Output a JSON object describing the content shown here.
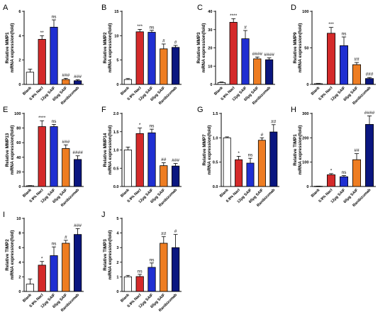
{
  "colors": {
    "Blank": "#ffffff",
    "0.9% Nacl": "#d42a2a",
    "12μg SAIF": "#1f2fd2",
    "60μg SAIF": "#ee7d22",
    "Ranibizumab": "#0a1680"
  },
  "chart_data": [
    {
      "type": "bar",
      "panel": "A",
      "ylabel_lines": [
        "Relative MMP1",
        "mRNA expression(fold)"
      ],
      "categories": [
        "Blank",
        "0.9% Nacl",
        "12μg SAIF",
        "60μg SAIF",
        "Ranibizumab"
      ],
      "values": [
        1.0,
        3.7,
        4.7,
        0.4,
        0.3
      ],
      "errors": [
        0.25,
        0.3,
        0.6,
        0.1,
        0.08
      ],
      "significance": [
        "",
        "**",
        "ns",
        "###",
        "###"
      ],
      "ylim": [
        0,
        6
      ],
      "yticks": [
        "0",
        "2",
        "4",
        "6"
      ],
      "yticks_values": [
        0,
        2,
        4,
        6
      ]
    },
    {
      "type": "bar",
      "panel": "B",
      "ylabel_lines": [
        "Relative MMP2",
        "mRNA expression(fold)"
      ],
      "categories": [
        "Blank",
        "0.9% Nacl",
        "12μg SAIF",
        "60μg SAIF",
        "Ranibizumab"
      ],
      "values": [
        1.0,
        10.8,
        10.7,
        7.3,
        7.6
      ],
      "errors": [
        0.2,
        0.5,
        0.4,
        1.0,
        0.4
      ],
      "significance": [
        "",
        "***",
        "ns",
        "#",
        "#"
      ],
      "ylim": [
        0,
        15
      ],
      "yticks": [
        "0",
        "5",
        "10",
        "15"
      ],
      "yticks_values": [
        0,
        5,
        10,
        15
      ]
    },
    {
      "type": "bar",
      "panel": "C",
      "ylabel_lines": [
        "Relative MMP3",
        "mRNA expression(fold)"
      ],
      "categories": [
        "Blank",
        "0.9% Nacl",
        "12μg SAIF",
        "60μg SAIF",
        "Ranibizumab"
      ],
      "values": [
        1.0,
        34.0,
        25.0,
        14.0,
        13.5
      ],
      "errors": [
        0.3,
        2.0,
        4.5,
        1.0,
        1.0
      ],
      "significance": [
        "",
        "****",
        "#",
        "####",
        "####"
      ],
      "ylim": [
        0,
        40
      ],
      "yticks": [
        "0",
        "10",
        "20",
        "30",
        "40"
      ],
      "yticks_values": [
        0,
        10,
        20,
        30,
        40
      ]
    },
    {
      "type": "bar",
      "panel": "D",
      "ylabel_lines": [
        "Relative MMP9",
        "mRNA expression(fold)"
      ],
      "categories": [
        "Blank",
        "0.9% Nacl",
        "12μg SAIF",
        "60μg SAIF",
        "Ranibizumab"
      ],
      "values": [
        1.0,
        70.0,
        53.0,
        27.0,
        8.0
      ],
      "errors": [
        0.4,
        8.0,
        12.0,
        3.0,
        1.5
      ],
      "significance": [
        "",
        "***",
        "ns",
        "##",
        "###"
      ],
      "ylim": [
        0,
        100
      ],
      "yticks": [
        "0",
        "50",
        "100"
      ],
      "yticks_values": [
        0,
        50,
        100
      ]
    },
    {
      "type": "bar",
      "panel": "E",
      "ylabel_lines": [
        "Relative MMP13",
        "mRNA expression(fold)"
      ],
      "categories": [
        "Blank",
        "0.9% Nacl",
        "12μg SAIF",
        "60μg SAIF",
        "Ranibizumab"
      ],
      "values": [
        1.0,
        82.0,
        82.0,
        52.0,
        37.0
      ],
      "errors": [
        0.3,
        8.0,
        3.0,
        5.0,
        5.0
      ],
      "significance": [
        "",
        "****",
        "ns",
        "###",
        "####"
      ],
      "ylim": [
        0,
        100
      ],
      "yticks": [
        "0",
        "20",
        "40",
        "60",
        "80",
        "100"
      ],
      "yticks_values": [
        0,
        20,
        40,
        60,
        80,
        100
      ]
    },
    {
      "type": "bar",
      "panel": "F",
      "ylabel_lines": [
        "Relative MMP14",
        "mRNA expression(fold)"
      ],
      "categories": [
        "Blank",
        "0.9% Nacl",
        "12μg SAIF",
        "60μg SAIF",
        "Ranibizumab"
      ],
      "values": [
        1.0,
        1.45,
        1.47,
        0.57,
        0.56
      ],
      "errors": [
        0.08,
        0.15,
        0.1,
        0.08,
        0.07
      ],
      "significance": [
        "",
        "*",
        "ns",
        "##",
        "###"
      ],
      "ylim": [
        0,
        2
      ],
      "yticks": [
        "0.0",
        "0.5",
        "1.0",
        "1.5",
        "2.0"
      ],
      "yticks_values": [
        0,
        0.5,
        1.0,
        1.5,
        2.0
      ]
    },
    {
      "type": "bar",
      "panel": "G",
      "ylabel_lines": [
        "Relative MMP7",
        "mRNA expression(fold)"
      ],
      "categories": [
        "Blank",
        "0.9% Nacl",
        "12μg SAIF",
        "60μg SAIF",
        "Ranibizumab"
      ],
      "values": [
        1.0,
        0.55,
        0.48,
        0.95,
        1.12
      ],
      "errors": [
        0.02,
        0.07,
        0.1,
        0.05,
        0.15
      ],
      "significance": [
        "",
        "*",
        "ns",
        "#",
        "##"
      ],
      "ylim": [
        0,
        1.5
      ],
      "yticks": [
        "0.0",
        "0.5",
        "1.0",
        "1.5"
      ],
      "yticks_values": [
        0,
        0.5,
        1.0,
        1.5
      ]
    },
    {
      "type": "bar",
      "panel": "H",
      "ylabel_lines": [
        "Relative TIMP1",
        "mRNA expression(fold)"
      ],
      "categories": [
        "Blank",
        "0.9% Nacl",
        "12μg SAIF",
        "60μg SAIF",
        "Ranibizumab"
      ],
      "values": [
        1.0,
        48.0,
        40.0,
        110.0,
        255.0
      ],
      "errors": [
        0.5,
        5.0,
        5.0,
        25.0,
        35.0
      ],
      "significance": [
        "",
        "*",
        "ns",
        "##",
        "####"
      ],
      "ylim": [
        0,
        300
      ],
      "yticks": [
        "0",
        "100",
        "200",
        "300"
      ],
      "yticks_values": [
        0,
        100,
        200,
        300
      ]
    },
    {
      "type": "bar",
      "panel": "I",
      "ylabel_lines": [
        "Relative TIMP2",
        "mRNA expression(fold)"
      ],
      "categories": [
        "Blank",
        "0.9% Nacl",
        "12μg SAIF",
        "60μg SAIF",
        "Ranibizumab"
      ],
      "values": [
        1.0,
        3.6,
        4.9,
        6.6,
        7.8
      ],
      "errors": [
        0.7,
        0.5,
        1.2,
        0.4,
        0.8
      ],
      "significance": [
        "",
        "*",
        "ns",
        "#",
        "###"
      ],
      "ylim": [
        0,
        10
      ],
      "yticks": [
        "0",
        "2",
        "4",
        "6",
        "8",
        "10"
      ],
      "yticks_values": [
        0,
        2,
        4,
        6,
        8,
        10
      ]
    },
    {
      "type": "bar",
      "panel": "J",
      "ylabel_lines": [
        "Relative TIMP3",
        "mRNA expression(fold)"
      ],
      "categories": [
        "Blank",
        "0.9% Nacl",
        "12μg SAIF",
        "60μg SAIF",
        "Ranibizumab"
      ],
      "values": [
        1.0,
        1.02,
        1.65,
        3.3,
        3.0
      ],
      "errors": [
        0.1,
        0.15,
        0.3,
        0.45,
        0.9
      ],
      "significance": [
        "",
        "ns",
        "ns",
        "##",
        "#"
      ],
      "ylim": [
        0,
        5
      ],
      "yticks": [
        "0",
        "1",
        "2",
        "3",
        "4",
        "5"
      ],
      "yticks_values": [
        0,
        1,
        2,
        3,
        4,
        5
      ]
    }
  ]
}
